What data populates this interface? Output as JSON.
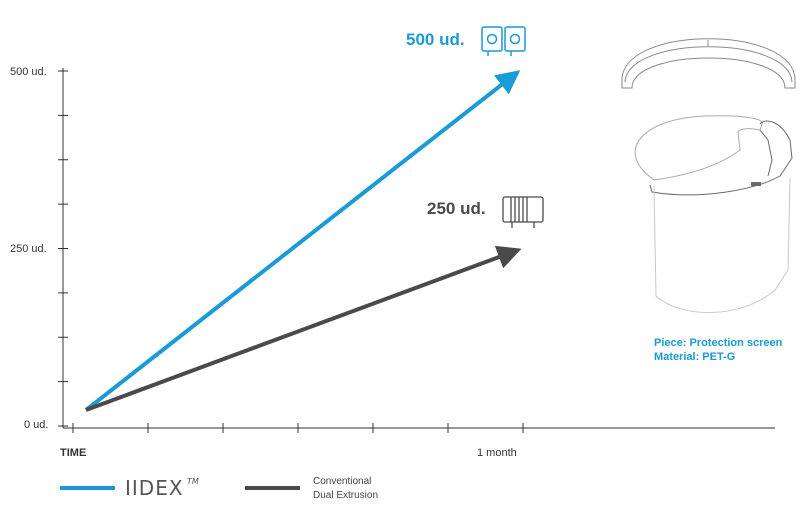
{
  "colors": {
    "iidex": "#1a9ad6",
    "conventional": "#4a4a4a",
    "axis": "#333333"
  },
  "chart_data": {
    "type": "line",
    "x": [
      "",
      "1 month"
    ],
    "series": [
      {
        "name": "IIDEX™",
        "values": [
          0,
          500
        ],
        "end_label": "500 ud.",
        "icon": "dual-head-printer-icon"
      },
      {
        "name": "Conventional Dual Extrusion",
        "values": [
          0,
          250
        ],
        "end_label": "250 ud.",
        "icon": "single-head-printer-icon"
      }
    ],
    "xlabel": "TIME",
    "x_tick_labels": [
      "TIME",
      "1 month"
    ],
    "y_tick_labels": [
      "0 ud.",
      "250 ud.",
      "500 ud."
    ],
    "ylim": [
      0,
      500
    ],
    "grid": false,
    "legend_position": "bottom-left"
  },
  "legend": {
    "iidex_wordmark": "IIDEX",
    "iidex_tm": "TM",
    "conventional_line1": "Conventional",
    "conventional_line2": "Dual Extrusion"
  },
  "piece": {
    "piece_label": "Piece: Protection screen",
    "material_label": "Material: PET-G",
    "image_icon": "face-shield-drawing-icon"
  }
}
